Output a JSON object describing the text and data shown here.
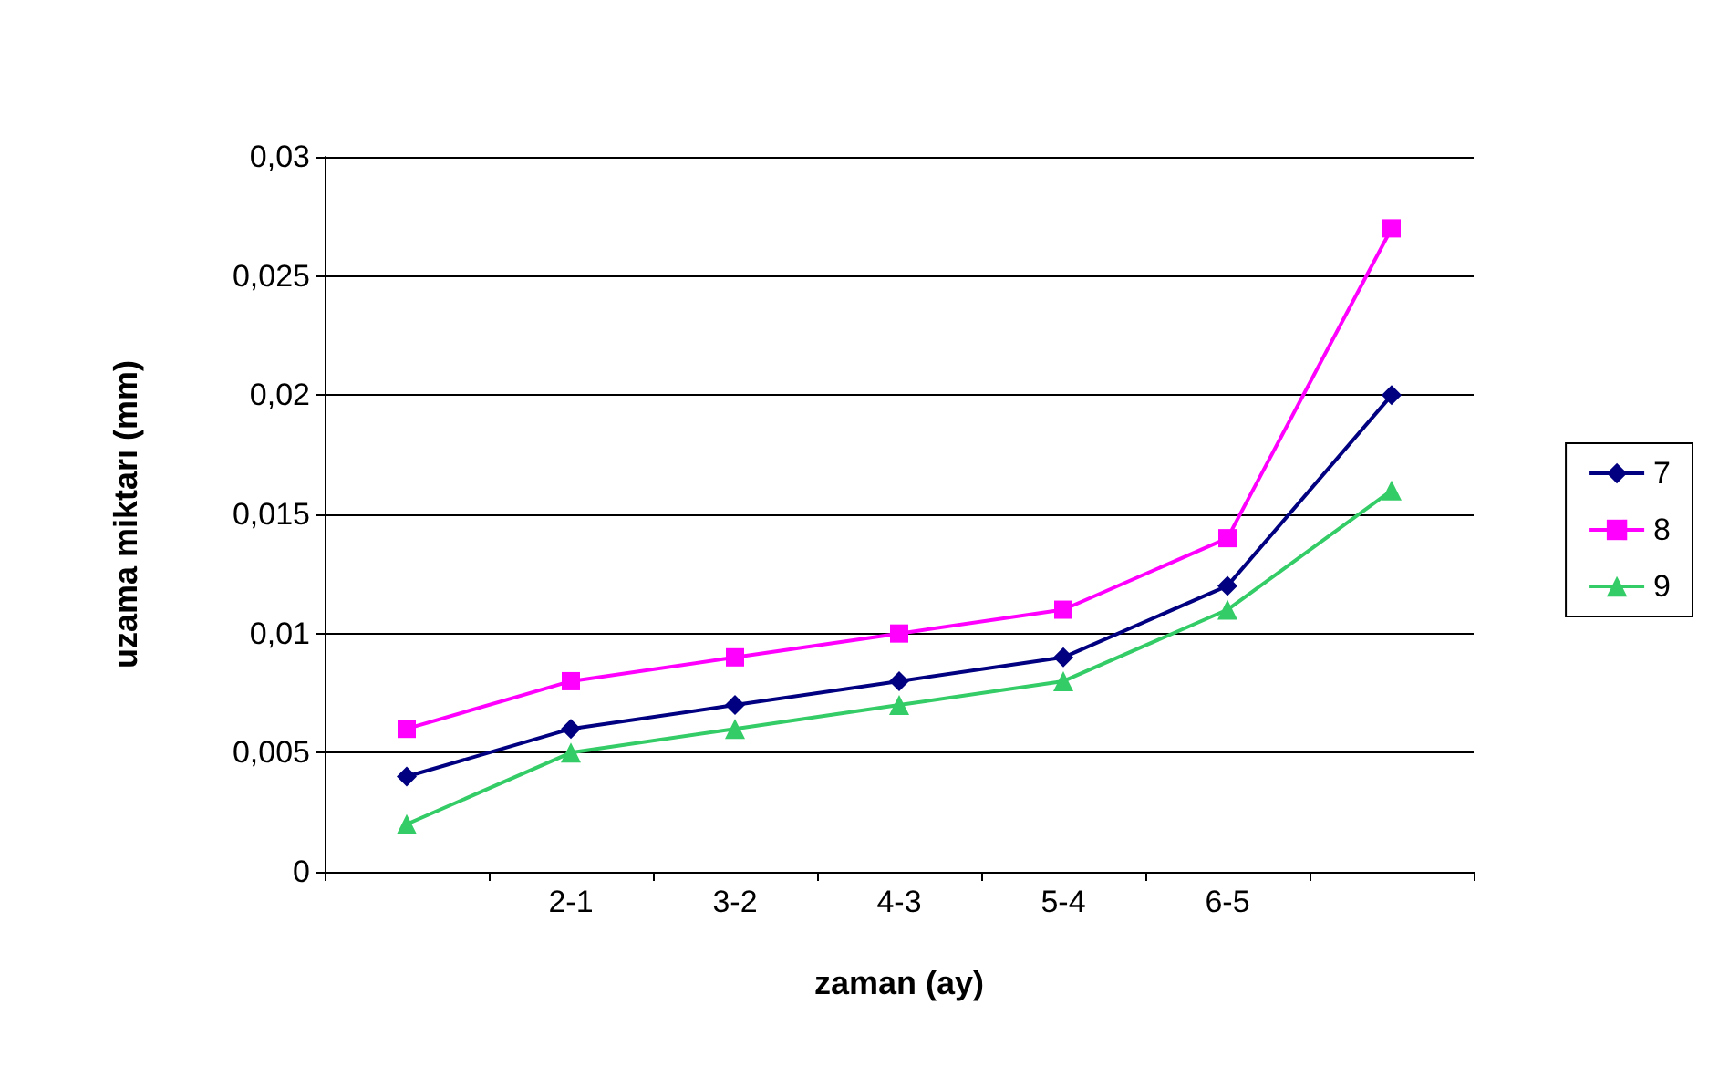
{
  "chart_data": {
    "type": "line",
    "xlabel": "zaman (ay)",
    "ylabel": "uzama miktarı (mm)",
    "categories": [
      null,
      "2-1",
      "3-2",
      "4-3",
      "5-4",
      "6-5",
      null
    ],
    "series": [
      {
        "name": "7",
        "color": "#000080",
        "marker": "diamond",
        "values": [
          0.004,
          0.006,
          0.007,
          0.008,
          0.009,
          0.012,
          0.02
        ]
      },
      {
        "name": "8",
        "color": "#ff00ff",
        "marker": "square",
        "values": [
          0.006,
          0.008,
          0.009,
          0.01,
          0.011,
          0.014,
          0.027
        ]
      },
      {
        "name": "9",
        "color": "#33cc66",
        "marker": "triangle",
        "values": [
          0.002,
          0.005,
          0.006,
          0.007,
          0.008,
          0.011,
          0.016
        ]
      }
    ],
    "ylim": [
      0,
      0.03
    ],
    "yticks": [
      {
        "value": 0,
        "label": "0"
      },
      {
        "value": 0.005,
        "label": "0,005"
      },
      {
        "value": 0.01,
        "label": "0,01"
      },
      {
        "value": 0.015,
        "label": "0,015"
      },
      {
        "value": 0.02,
        "label": "0,02"
      },
      {
        "value": 0.025,
        "label": "0,025"
      },
      {
        "value": 0.03,
        "label": "0,03"
      }
    ],
    "grid": "y",
    "legend": "right"
  }
}
